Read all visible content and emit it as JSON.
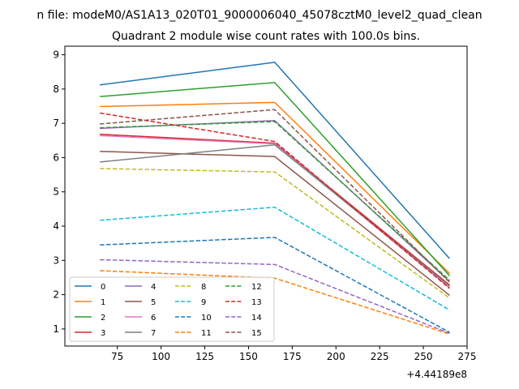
{
  "suptitle": "n file: modeM0/AS1A13_020T01_9000006040_45078cztM0_level2_quad_clean",
  "chart_data": {
    "type": "line",
    "title": "Quadrant 2 module wise count rates with 100.0s bins.",
    "xlabel": "",
    "ylabel": "",
    "x_offset_label": "+4.44189e8",
    "x": [
      65,
      165,
      265
    ],
    "xlim": [
      45,
      275
    ],
    "ylim": [
      0.5,
      9.25
    ],
    "xticks": [
      75,
      100,
      125,
      150,
      175,
      200,
      225,
      250,
      275
    ],
    "yticks": [
      1,
      2,
      3,
      4,
      5,
      6,
      7,
      8,
      9
    ],
    "grid": false,
    "legend_position": "lower-left",
    "legend_columns": 4,
    "series": [
      {
        "name": "0",
        "values": [
          8.12,
          8.78,
          3.05
        ],
        "color": "#1f77b4",
        "dash": "solid"
      },
      {
        "name": "1",
        "values": [
          7.49,
          7.61,
          2.62
        ],
        "color": "#ff7f0e",
        "dash": "solid"
      },
      {
        "name": "2",
        "values": [
          7.78,
          8.19,
          2.55
        ],
        "color": "#2ca02c",
        "dash": "solid"
      },
      {
        "name": "3",
        "values": [
          6.68,
          6.42,
          2.28
        ],
        "color": "#d62728",
        "dash": "solid"
      },
      {
        "name": "4",
        "values": [
          6.85,
          7.08,
          2.38
        ],
        "color": "#9467bd",
        "dash": "solid"
      },
      {
        "name": "5",
        "values": [
          6.18,
          6.03,
          1.98
        ],
        "color": "#8c564b",
        "dash": "solid"
      },
      {
        "name": "6",
        "values": [
          6.64,
          6.4,
          2.2
        ],
        "color": "#e377c2",
        "dash": "solid"
      },
      {
        "name": "7",
        "values": [
          5.87,
          6.37,
          2.25
        ],
        "color": "#7f7f7f",
        "dash": "solid"
      },
      {
        "name": "8",
        "values": [
          5.68,
          5.58,
          1.9
        ],
        "color": "#bcbd22",
        "dash": "dashed"
      },
      {
        "name": "9",
        "values": [
          4.17,
          4.55,
          1.55
        ],
        "color": "#17becf",
        "dash": "dashed"
      },
      {
        "name": "10",
        "values": [
          3.45,
          3.67,
          0.9
        ],
        "color": "#1f77b4",
        "dash": "dashed"
      },
      {
        "name": "11",
        "values": [
          2.7,
          2.48,
          0.85
        ],
        "color": "#ff7f0e",
        "dash": "dashed"
      },
      {
        "name": "12",
        "values": [
          6.87,
          7.05,
          2.42
        ],
        "color": "#2ca02c",
        "dash": "dashed"
      },
      {
        "name": "13",
        "values": [
          7.3,
          6.47,
          2.18
        ],
        "color": "#d62728",
        "dash": "dashed"
      },
      {
        "name": "14",
        "values": [
          3.02,
          2.88,
          0.87
        ],
        "color": "#9467bd",
        "dash": "dashed"
      },
      {
        "name": "15",
        "values": [
          6.98,
          7.4,
          2.36
        ],
        "color": "#8c564b",
        "dash": "dashed"
      }
    ]
  }
}
